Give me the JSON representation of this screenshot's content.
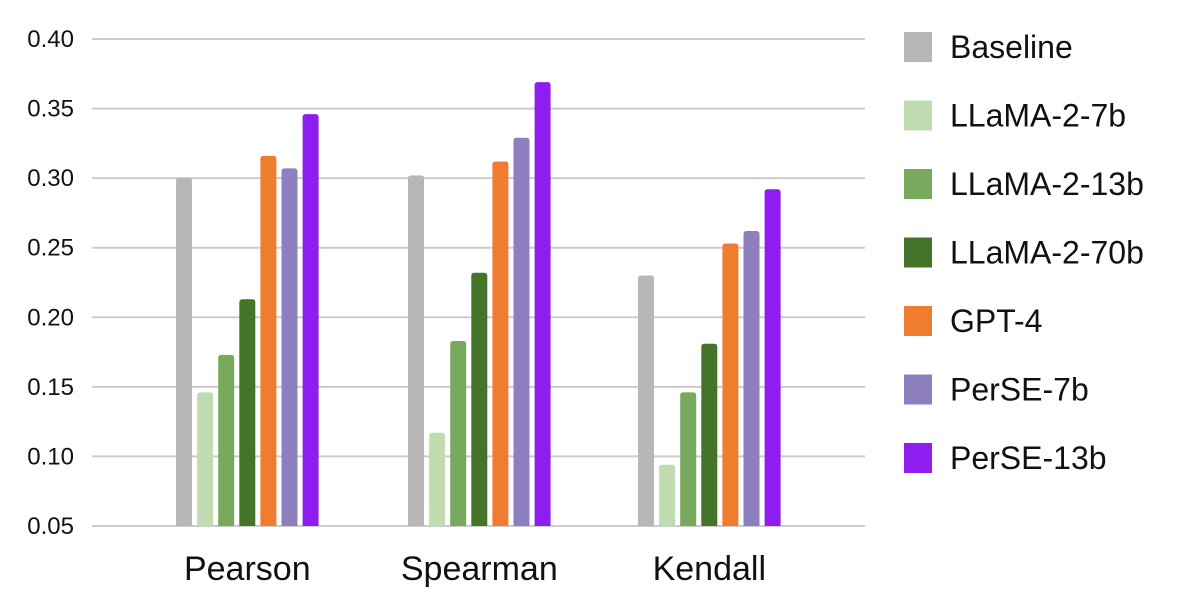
{
  "chart_data": {
    "type": "bar",
    "categories": [
      "Pearson",
      "Spearman",
      "Kendall"
    ],
    "series": [
      {
        "name": "Baseline",
        "color": "#b7b7b7",
        "values": [
          0.3,
          0.302,
          0.23
        ]
      },
      {
        "name": "LLaMA-2-7b",
        "color": "#bfdcb0",
        "values": [
          0.146,
          0.117,
          0.094
        ]
      },
      {
        "name": "LLaMA-2-13b",
        "color": "#78a95d",
        "values": [
          0.173,
          0.183,
          0.146
        ]
      },
      {
        "name": "LLaMA-2-70b",
        "color": "#44732a",
        "values": [
          0.213,
          0.232,
          0.181
        ]
      },
      {
        "name": "GPT-4",
        "color": "#f07c30",
        "values": [
          0.316,
          0.312,
          0.253
        ]
      },
      {
        "name": "PerSE-7b",
        "color": "#8e7fbf",
        "values": [
          0.307,
          0.329,
          0.262
        ]
      },
      {
        "name": "PerSE-13b",
        "color": "#8e1ef0",
        "values": [
          0.346,
          0.369,
          0.292
        ]
      }
    ],
    "yticks": [
      "0.40",
      "0.35",
      "0.30",
      "0.25",
      "0.20",
      "0.15",
      "0.10",
      "0.05"
    ],
    "ylim": [
      0.05,
      0.4
    ],
    "grid": true,
    "legend_position": "right",
    "title": "",
    "xlabel": "",
    "ylabel": ""
  }
}
